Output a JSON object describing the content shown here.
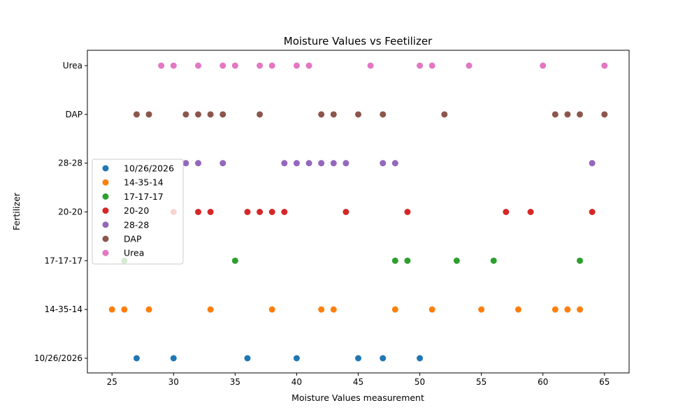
{
  "chart_data": {
    "type": "scatter",
    "title": "Moisture Values vs Feetilizer",
    "xlabel": "Moisture Values measurement",
    "ylabel": "Fertilizer",
    "xlim": [
      23,
      67
    ],
    "xticks": [
      "25",
      "30",
      "35",
      "40",
      "45",
      "50",
      "55",
      "60",
      "65"
    ],
    "categories": [
      "10/26/2026",
      "14-35-14",
      "17-17-17",
      "20-20",
      "28-28",
      "DAP",
      "Urea"
    ],
    "grid": false,
    "legend_position": "center-left",
    "series": [
      {
        "name": "10/26/2026",
        "color": "#1f77b4",
        "x": [
          27,
          30,
          36,
          40,
          45,
          47,
          50
        ]
      },
      {
        "name": "14-35-14",
        "color": "#ff7f0e",
        "x": [
          25,
          26,
          28,
          33,
          38,
          42,
          43,
          48,
          51,
          55,
          58,
          61,
          62,
          63
        ]
      },
      {
        "name": "17-17-17",
        "color": "#2ca02c",
        "x": [
          26,
          35,
          48,
          49,
          53,
          56,
          63
        ]
      },
      {
        "name": "20-20",
        "color": "#d62728",
        "x": [
          30,
          32,
          33,
          36,
          37,
          38,
          39,
          44,
          49,
          57,
          59,
          64
        ]
      },
      {
        "name": "28-28",
        "color": "#9467bd",
        "x": [
          31,
          32,
          34,
          39,
          40,
          41,
          42,
          43,
          44,
          47,
          48,
          64
        ]
      },
      {
        "name": "DAP",
        "color": "#8c564b",
        "x": [
          27,
          28,
          31,
          32,
          33,
          34,
          37,
          42,
          43,
          45,
          47,
          52,
          61,
          62,
          63,
          65
        ]
      },
      {
        "name": "Urea",
        "color": "#e377c2",
        "x": [
          29,
          30,
          32,
          34,
          35,
          37,
          38,
          40,
          41,
          46,
          50,
          51,
          54,
          60,
          65
        ]
      }
    ]
  }
}
